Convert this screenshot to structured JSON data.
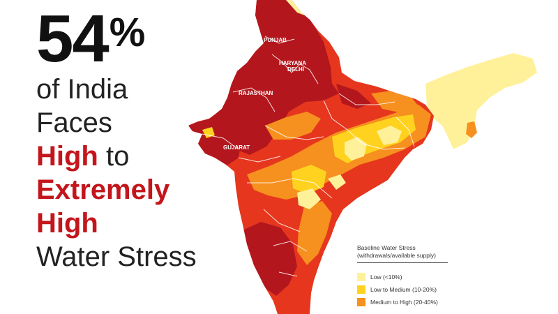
{
  "headline": {
    "percent_number": "54",
    "percent_sign": "%",
    "line1": "of India",
    "line2": "Faces",
    "high": "High",
    "to": "to",
    "extremely": "Extremely",
    "high2": "High",
    "water_stress": "Water Stress"
  },
  "map": {
    "labels": {
      "punjab": "PUNJAB",
      "haryana": "HARYANA",
      "delhi": "DELHI",
      "rajasthan": "RAJASTHAN",
      "gujarat": "GUJARAT"
    }
  },
  "legend": {
    "title_line1": "Baseline Water Stress",
    "title_line2": "(withdrawals/available supply)",
    "items": [
      {
        "label": "Low (<10%)",
        "color": "#fff19a"
      },
      {
        "label": "Low to Medium (10-20%)",
        "color": "#ffd21f"
      },
      {
        "label": "Medium to High (20-40%)",
        "color": "#f6901e"
      }
    ]
  },
  "colors": {
    "extremely_high": "#b3171d",
    "high": "#e6361e",
    "medium_high": "#f6901e",
    "low_medium": "#ffd21f",
    "low": "#fff19a",
    "headline_red": "#c3161c"
  }
}
